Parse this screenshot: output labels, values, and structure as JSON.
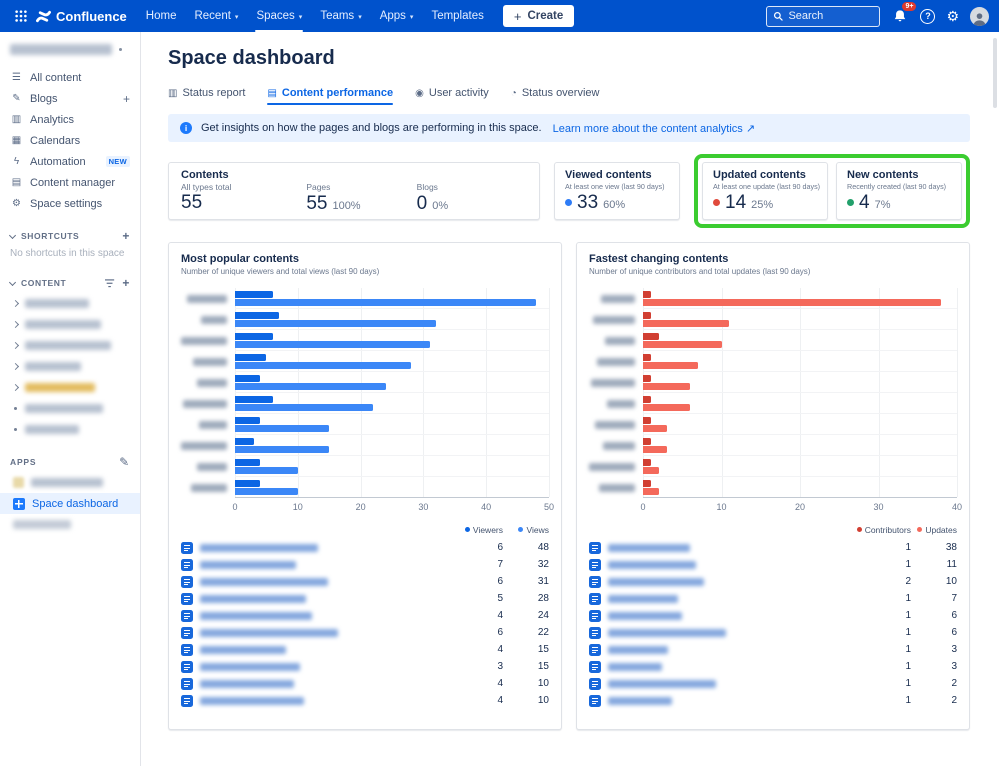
{
  "nav": {
    "brand": "Confluence",
    "items": [
      {
        "label": "Home",
        "caret": false,
        "active": false
      },
      {
        "label": "Recent",
        "caret": true,
        "active": false
      },
      {
        "label": "Spaces",
        "caret": true,
        "active": true
      },
      {
        "label": "Teams",
        "caret": true,
        "active": false
      },
      {
        "label": "Apps",
        "caret": true,
        "active": false
      },
      {
        "label": "Templates",
        "caret": false,
        "active": false
      }
    ],
    "create_label": "Create",
    "search_placeholder": "Search",
    "notification_badge": "9+"
  },
  "sidebar": {
    "items": [
      {
        "label": "All content",
        "icon": "list-icon"
      },
      {
        "label": "Blogs",
        "icon": "quote-icon",
        "plus": true
      },
      {
        "label": "Analytics",
        "icon": "chart-icon"
      },
      {
        "label": "Calendars",
        "icon": "calendar-icon"
      },
      {
        "label": "Automation",
        "icon": "lightning-icon",
        "badge": "NEW"
      },
      {
        "label": "Content manager",
        "icon": "layers-icon"
      },
      {
        "label": "Space settings",
        "icon": "gear-icon"
      }
    ],
    "shortcuts": {
      "header": "SHORTCUTS",
      "empty": "No shortcuts in this space"
    },
    "content_header": "CONTENT",
    "apps_header": "APPS",
    "space_dashboard": "Space dashboard"
  },
  "page": {
    "title": "Space dashboard",
    "tabs": [
      {
        "label": "Status report",
        "icon": "bar-chart-icon",
        "active": false
      },
      {
        "label": "Content performance",
        "icon": "document-icon",
        "active": true
      },
      {
        "label": "User activity",
        "icon": "user-icon",
        "active": false
      },
      {
        "label": "Status overview",
        "icon": "pie-chart-icon",
        "active": false
      }
    ],
    "banner": {
      "text": "Get insights on how the pages and blogs are performing in this space.",
      "link": "Learn more about the content analytics ↗"
    }
  },
  "stats": {
    "contents": {
      "title": "Contents",
      "subtitle": "All types total",
      "value": "55",
      "pages_label": "Pages",
      "pages_value": "55",
      "pages_pct": "100%",
      "blogs_label": "Blogs",
      "blogs_value": "0",
      "blogs_pct": "0%"
    },
    "viewed": {
      "title": "Viewed contents",
      "subtitle": "At least one view (last 90 days)",
      "value": "33",
      "pct": "60%",
      "dot_color": "#2E7CF6"
    },
    "updated": {
      "title": "Updated contents",
      "subtitle": "At least one update (last 90 days)",
      "value": "14",
      "pct": "25%",
      "dot_color": "#E04A3C"
    },
    "new": {
      "title": "New contents",
      "subtitle": "Recently created (last 90 days)",
      "value": "4",
      "pct": "7%",
      "dot_color": "#22A06B"
    }
  },
  "annotation": {
    "highlight_color": "#3BCC30"
  },
  "chart_data": [
    {
      "type": "bar",
      "orientation": "horizontal",
      "title": "Most popular contents",
      "subtitle": "Number of unique viewers and total views (last 90 days)",
      "xlim": [
        0,
        50
      ],
      "xticks": [
        0,
        10,
        20,
        30,
        40,
        50
      ],
      "grid": true,
      "legend_position": "bottom-right",
      "series": [
        {
          "name": "Viewers",
          "color": "#0C66E4",
          "values": [
            6,
            7,
            6,
            5,
            4,
            6,
            4,
            3,
            4,
            4
          ]
        },
        {
          "name": "Views",
          "color": "#3B87F7",
          "values": [
            48,
            32,
            31,
            28,
            24,
            22,
            15,
            15,
            10,
            10
          ]
        }
      ],
      "categories_note": "page titles blurred in screenshot",
      "table": {
        "columns": [
          "Viewers",
          "Views"
        ],
        "rows": [
          [
            6,
            48
          ],
          [
            7,
            32
          ],
          [
            6,
            31
          ],
          [
            5,
            28
          ],
          [
            4,
            24
          ],
          [
            6,
            22
          ],
          [
            4,
            15
          ],
          [
            3,
            15
          ],
          [
            4,
            10
          ],
          [
            4,
            10
          ]
        ]
      }
    },
    {
      "type": "bar",
      "orientation": "horizontal",
      "title": "Fastest changing contents",
      "subtitle": "Number of unique contributors and total updates (last 90 days)",
      "xlim": [
        0,
        40
      ],
      "xticks": [
        0,
        10,
        20,
        30,
        40
      ],
      "grid": true,
      "legend_position": "bottom-right",
      "series": [
        {
          "name": "Contributors",
          "color": "#D13F32",
          "values": [
            1,
            1,
            2,
            1,
            1,
            1,
            1,
            1,
            1,
            1
          ]
        },
        {
          "name": "Updates",
          "color": "#F4695B",
          "values": [
            38,
            11,
            10,
            7,
            6,
            6,
            3,
            3,
            2,
            2
          ]
        }
      ],
      "categories_note": "page titles blurred in screenshot",
      "table": {
        "columns": [
          "Contributors",
          "Updates"
        ],
        "rows": [
          [
            1,
            38
          ],
          [
            1,
            11
          ],
          [
            2,
            10
          ],
          [
            1,
            7
          ],
          [
            1,
            6
          ],
          [
            1,
            6
          ],
          [
            1,
            3
          ],
          [
            1,
            3
          ],
          [
            1,
            2
          ],
          [
            1,
            2
          ]
        ]
      }
    }
  ]
}
